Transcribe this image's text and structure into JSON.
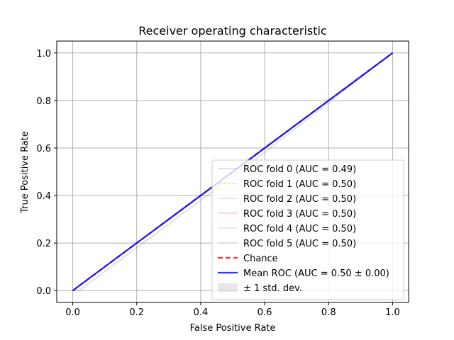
{
  "chart_data": {
    "type": "line",
    "title": "Receiver operating characteristic",
    "xlabel": "False Positive Rate",
    "ylabel": "True Positive Rate",
    "xlim": [
      -0.05,
      1.05
    ],
    "ylim": [
      -0.05,
      1.05
    ],
    "xticks": [
      0.0,
      0.2,
      0.4,
      0.6,
      0.8,
      1.0
    ],
    "yticks": [
      0.0,
      0.2,
      0.4,
      0.6,
      0.8,
      1.0
    ],
    "xtick_labels": [
      "0.0",
      "0.2",
      "0.4",
      "0.6",
      "0.8",
      "1.0"
    ],
    "ytick_labels": [
      "0.0",
      "0.2",
      "0.4",
      "0.6",
      "0.8",
      "1.0"
    ],
    "grid": true,
    "legend_position": "lower-right",
    "series": [
      {
        "name": "ROC fold 0 (AUC = 0.49)",
        "color": "#1f77b4",
        "opacity": 0.35,
        "width": 1,
        "dash": "",
        "x": [
          0.0,
          0.02,
          0.55,
          1.0
        ],
        "y": [
          0.0,
          0.0,
          0.53,
          1.0
        ]
      },
      {
        "name": "ROC fold 1 (AUC = 0.50)",
        "color": "#ff7f0e",
        "opacity": 0.35,
        "width": 1,
        "dash": "",
        "x": [
          0.0,
          1.0
        ],
        "y": [
          0.0,
          1.0
        ]
      },
      {
        "name": "ROC fold 2 (AUC = 0.50)",
        "color": "#2ca02c",
        "opacity": 0.35,
        "width": 1,
        "dash": "",
        "x": [
          0.0,
          1.0
        ],
        "y": [
          0.0,
          1.0
        ]
      },
      {
        "name": "ROC fold 3 (AUC = 0.50)",
        "color": "#d62728",
        "opacity": 0.35,
        "width": 1,
        "dash": "",
        "x": [
          0.0,
          1.0
        ],
        "y": [
          0.0,
          1.0
        ]
      },
      {
        "name": "ROC fold 4 (AUC = 0.50)",
        "color": "#9467bd",
        "opacity": 0.35,
        "width": 1,
        "dash": "",
        "x": [
          0.0,
          1.0
        ],
        "y": [
          0.0,
          1.0
        ]
      },
      {
        "name": "ROC fold 5 (AUC = 0.50)",
        "color": "#8c564b",
        "opacity": 0.35,
        "width": 1,
        "dash": "",
        "x": [
          0.0,
          1.0
        ],
        "y": [
          0.0,
          1.0
        ]
      },
      {
        "name": "Chance",
        "color": "#ff0000",
        "opacity": 0.8,
        "width": 2.2,
        "dash": "7,4",
        "x": [
          0.0,
          1.0
        ],
        "y": [
          0.0,
          1.0
        ]
      },
      {
        "name": "Mean ROC (AUC = 0.50 ± 0.00)",
        "color": "#0000ff",
        "opacity": 0.8,
        "width": 2.2,
        "dash": "",
        "x": [
          0.0,
          1.0
        ],
        "y": [
          0.0,
          1.0
        ]
      }
    ],
    "band": {
      "name": "± 1 std. dev.",
      "color": "#808080",
      "opacity": 0.2,
      "x": [
        0.0,
        0.5,
        1.0
      ],
      "upper": [
        0.0,
        0.5,
        1.0
      ],
      "lower": [
        0.0,
        0.49,
        1.0
      ]
    }
  }
}
